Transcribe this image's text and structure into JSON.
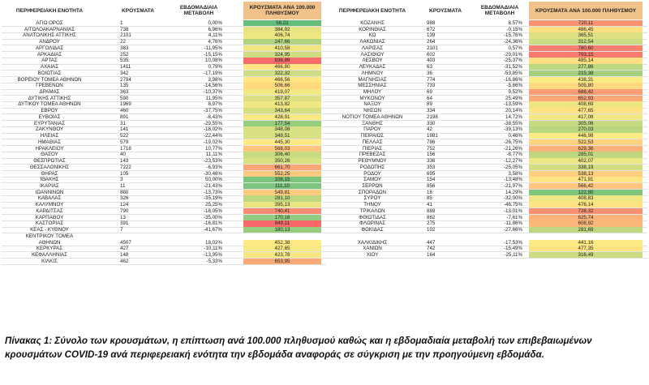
{
  "headers": {
    "region": "ΠΕΡΙΦΕΡΕΙΑΚΗ ΕΝΟΤΗΤΑ",
    "cases": "ΚΡΟΥΣΜΑΤΑ",
    "change": "ΕΒΔΟΜΑΔΙΑΙΑ ΜΕΤΑΒΟΛΗ",
    "rate": "ΚΡΟΥΣΜΑΤΑ ΑΝΑ 100.000 ΠΛΗΘΥΣΜΟΥ"
  },
  "colors": {
    "scale_low": "#63be7b",
    "scale_mid": "#ffeb84",
    "scale_high": "#f8696b",
    "header_tint": "#f2c28c"
  },
  "left_rows": [
    {
      "region": "ΑΓΙΟ ΟΡΟΣ",
      "cases": "1",
      "change": "0,00%",
      "rate": "56,21"
    },
    {
      "region": "ΑΙΤΩΛΟΑΚΑΡΝΑΝΙΑΣ",
      "cases": "738",
      "change": "6,96%",
      "rate": "384,92"
    },
    {
      "region": "ΑΝΑΤΟΛΙΚΗΣ ΑΤΤΙΚΗΣ",
      "cases": "2101",
      "change": "4,11%",
      "rate": "406,74"
    },
    {
      "region": "ΑΝΔΡΟΥ",
      "cases": "22",
      "change": "4,76%",
      "rate": "247,66"
    },
    {
      "region": "ΑΡΓΟΛΙΔΑΣ",
      "cases": "383",
      "change": "-11,95%",
      "rate": "410,58"
    },
    {
      "region": "ΑΡΚΑΔΙΑΣ",
      "cases": "252",
      "change": "-15,15%",
      "rate": "324,95"
    },
    {
      "region": "ΑΡΤΑΣ",
      "cases": "535",
      "change": "10,08%",
      "rate": "836,89"
    },
    {
      "region": "ΑΧΑΪΑΣ",
      "cases": "1411",
      "change": "0,79%",
      "rate": "466,80"
    },
    {
      "region": "ΒΟΙΩΤΙΑΣ",
      "cases": "342",
      "change": "-17,19%",
      "rate": "322,32"
    },
    {
      "region": "ΒΟΡΕΙΟΥ ΤΟΜΕΑ ΑΘΗΝΩΝ",
      "cases": "2794",
      "change": "3,98%",
      "rate": "466,56"
    },
    {
      "region": "ΓΡΕΒΕΝΩΝ",
      "cases": "135",
      "change": "-14,56%",
      "rate": "506,66"
    },
    {
      "region": "ΔΡΑΜΑΣ",
      "cases": "363",
      "change": "-10,37%",
      "rate": "419,07"
    },
    {
      "region": "ΔΥΤΙΚΗΣ ΑΤΤΙΚΗΣ",
      "cases": "590",
      "change": "11,95%",
      "rate": "357,87"
    },
    {
      "region": "ΔΥΤΙΚΟΥ ΤΟΜΕΑ ΑΘΗΝΩΝ",
      "cases": "1969",
      "change": "8,97%",
      "rate": "413,82"
    },
    {
      "region": "ΕΒΡΟΥ",
      "cases": "460",
      "change": "-37,75%",
      "rate": "343,64"
    },
    {
      "region": "ΕΥΒΟΙΑΣ",
      "cases": "891",
      "change": "-8,43%",
      "rate": "428,91"
    },
    {
      "region": "ΕΥΡΥΤΑΝΙΑΣ",
      "cases": "31",
      "change": "-29,55%",
      "rate": "177,54"
    },
    {
      "region": "ΖΑΚΥΝΘΟΥ",
      "cases": "141",
      "change": "-18,02%",
      "rate": "348,08"
    },
    {
      "region": "ΗΛΕΙΑΣ",
      "cases": "522",
      "change": "-22,44%",
      "rate": "349,51"
    },
    {
      "region": "ΗΜΑΘΙΑΣ",
      "cases": "579",
      "change": "-19,02%",
      "rate": "445,30"
    },
    {
      "region": "ΗΡΑΚΛΕΙΟΥ",
      "cases": "1718",
      "change": "10,77%",
      "rate": "568,03"
    },
    {
      "region": "ΘΑΣΟΥ",
      "cases": "40",
      "change": "11,11%",
      "rate": "306,40"
    },
    {
      "region": "ΘΕΣΠΡΩΤΙΑΣ",
      "cases": "143",
      "change": "-23,53%",
      "rate": "350,26"
    },
    {
      "region": "ΘΕΣΣΑΛΟΝΙΚΗΣ",
      "cases": "7222",
      "change": "-6,93%",
      "rate": "661,70"
    },
    {
      "region": "ΘΗΡΑΣ",
      "cases": "105",
      "change": "-30,46%",
      "rate": "552,25"
    },
    {
      "region": "ΙΘΑΚΗΣ",
      "cases": "3",
      "change": "50,00%",
      "rate": "108,15"
    },
    {
      "region": "ΙΚΑΡΙΑΣ",
      "cases": "11",
      "change": "-21,43%",
      "rate": "111,10"
    },
    {
      "region": "ΙΩΑΝΝΙΝΩΝ",
      "cases": "880",
      "change": "-13,73%",
      "rate": "549,81"
    },
    {
      "region": "ΚΑΒΑΛΑΣ",
      "cases": "326",
      "change": "-35,19%",
      "rate": "281,10"
    },
    {
      "region": "ΚΑΛΥΜΝΟΥ",
      "cases": "124",
      "change": "25,25%",
      "rate": "395,13"
    },
    {
      "region": "ΚΑΡΔΙΤΣΑΣ",
      "cases": "790",
      "change": "-18,05%",
      "rate": "740,41"
    },
    {
      "region": "ΚΑΡΠΑΘΟΥ",
      "cases": "13",
      "change": "-35,00%",
      "rate": "170,16"
    },
    {
      "region": "ΚΑΣΤΟΡΙΑΣ",
      "cases": "391",
      "change": "-16,81%",
      "rate": "849,11"
    },
    {
      "region": "ΚΕΑΣ - ΚΥΘΝΟΥ",
      "cases": "7",
      "change": "-41,67%",
      "rate": "180,13"
    },
    {
      "region": "ΚΕΝΤΡΙΚΟΥ ΤΟΜΕΑ ΑΘΗΝΩΝ",
      "cases": "4507",
      "change": "18,02%",
      "rate": "452,38"
    },
    {
      "region": "ΚΕΡΚΥΡΑΣ",
      "cases": "427",
      "change": "-10,11%",
      "rate": "427,65"
    },
    {
      "region": "ΚΕΦΑΛΛΗΝΙΑΣ",
      "cases": "148",
      "change": "-13,95%",
      "rate": "423,78"
    },
    {
      "region": "ΚΙΛΚΙΣ",
      "cases": "462",
      "change": "-5,33%",
      "rate": "653,95"
    }
  ],
  "right_rows": [
    {
      "region": "ΚΟΖΑΝΗΣ",
      "cases": "988",
      "change": "8,57%",
      "rate": "720,11"
    },
    {
      "region": "ΚΟΡΙΝΘΙΑΣ",
      "cases": "672",
      "change": "-0,15%",
      "rate": "486,45"
    },
    {
      "region": "ΚΩ",
      "cases": "139",
      "change": "-15,76%",
      "rate": "365,51"
    },
    {
      "region": "ΛΑΚΩΝΙΑΣ",
      "cases": "264",
      "change": "-24,36%",
      "rate": "312,54"
    },
    {
      "region": "ΛΑΡΙΣΑΣ",
      "cases": "2101",
      "change": "0,57%",
      "rate": "780,60"
    },
    {
      "region": "ΛΑΣΙΘΙΟΥ",
      "cases": "602",
      "change": "-29,01%",
      "rate": "793,15"
    },
    {
      "region": "ΛΕΣΒΟΥ",
      "cases": "403",
      "change": "-25,37%",
      "rate": "485,14"
    },
    {
      "region": "ΛΕΥΚΑΔΑΣ",
      "cases": "63",
      "change": "-31,52%",
      "rate": "277,86"
    },
    {
      "region": "ΛΗΜΝΟΥ",
      "cases": "36",
      "change": "-53,85%",
      "rate": "215,38"
    },
    {
      "region": "ΜΑΓΝΗΣΙΑΣ",
      "cases": "774",
      "change": "-16,86%",
      "rate": "438,31"
    },
    {
      "region": "ΜΕΣΣΗΝΙΑΣ",
      "cases": "733",
      "change": "-5,66%",
      "rate": "505,80"
    },
    {
      "region": "ΜΗΛΟΥ",
      "cases": "69",
      "change": "9,52%",
      "rate": "688,42"
    },
    {
      "region": "ΜΥΚΟΝΟΥ",
      "cases": "64",
      "change": "25,49%",
      "rate": "652,93"
    },
    {
      "region": "ΝΑΞΟΥ",
      "cases": "89",
      "change": "-13,59%",
      "rate": "408,69"
    },
    {
      "region": "ΝΗΣΩΝ",
      "cases": "334",
      "change": "20,14%",
      "rate": "477,65"
    },
    {
      "region": "ΝΟΤΙΟΥ ΤΟΜΕΑ ΑΘΗΝΩΝ",
      "cases": "2198",
      "change": "14,72%",
      "rate": "417,08"
    },
    {
      "region": "ΞΑΝΘΗΣ",
      "cases": "330",
      "change": "-38,55%",
      "rate": "305,06"
    },
    {
      "region": "ΠΑΡΟΥ",
      "cases": "42",
      "change": "-39,13%",
      "rate": "270,03"
    },
    {
      "region": "ΠΕΙΡΑΙΩΣ",
      "cases": "1981",
      "change": "0,46%",
      "rate": "446,98"
    },
    {
      "region": "ΠΕΛΛΑΣ",
      "cases": "786",
      "change": "-26,75%",
      "rate": "522,53"
    },
    {
      "region": "ΠΙΕΡΙΑΣ",
      "cases": "752",
      "change": "-21,26%",
      "rate": "629,36"
    },
    {
      "region": "ΠΡΕΒΕΖΑΣ",
      "cases": "156",
      "change": "-8,77%",
      "rate": "285,01"
    },
    {
      "region": "ΡΕΘΥΜΝΟΥ",
      "cases": "336",
      "change": "-12,27%",
      "rate": "402,07"
    },
    {
      "region": "ΡΟΔΟΠΗΣ",
      "cases": "353",
      "change": "-25,05%",
      "rate": "338,19"
    },
    {
      "region": "ΡΟΔΟΥ",
      "cases": "695",
      "change": "3,58%",
      "rate": "538,13"
    },
    {
      "region": "ΣΑΜΟΥ",
      "cases": "154",
      "change": "-13,48%",
      "rate": "471,91"
    },
    {
      "region": "ΣΕΡΡΩΝ",
      "cases": "856",
      "change": "-21,97%",
      "rate": "566,42"
    },
    {
      "region": "ΣΠΟΡΑΔΩΝ",
      "cases": "16",
      "change": "14,29%",
      "rate": "122,80"
    },
    {
      "region": "ΣΥΡΟΥ",
      "cases": "85",
      "change": "-32,00%",
      "rate": "408,83"
    },
    {
      "region": "ΤΗΝΟΥ",
      "cases": "41",
      "change": "-46,75%",
      "rate": "476,14"
    },
    {
      "region": "ΤΡΙΚΑΛΩΝ",
      "cases": "889",
      "change": "-13,01%",
      "rate": "728,32"
    },
    {
      "region": "ΦΘΙΩΤΙΔΑΣ",
      "cases": "862",
      "change": "-7,61%",
      "rate": "625,74"
    },
    {
      "region": "ΦΛΩΡΙΝΑΣ",
      "cases": "275",
      "change": "-11,86%",
      "rate": "608,92"
    },
    {
      "region": "ΦΩΚΙΔΑΣ",
      "cases": "102",
      "change": "-27,66%",
      "rate": "281,69"
    },
    {
      "region": "ΧΑΛΚΙΔΙΚΗΣ",
      "cases": "447",
      "change": "-17,53%",
      "rate": "441,16"
    },
    {
      "region": "ΧΑΝΙΩΝ",
      "cases": "742",
      "change": "-15,49%",
      "rate": "477,35"
    },
    {
      "region": "ΧΙΟΥ",
      "cases": "164",
      "change": "-25,11%",
      "rate": "316,49"
    }
  ],
  "caption": "Πίνακας 1: Σύνολο των κρουσμάτων, η επίπτωση ανά 100.000 πληθυσμού καθώς και η εβδομαδιαία μεταβολή των επιβεβαιωμένων κρουσμάτων COVID-19 ανά περιφερειακή ενότητα την εβδομάδα αναφοράς σε σύγκριση με την προηγούμενη εβδομάδα."
}
